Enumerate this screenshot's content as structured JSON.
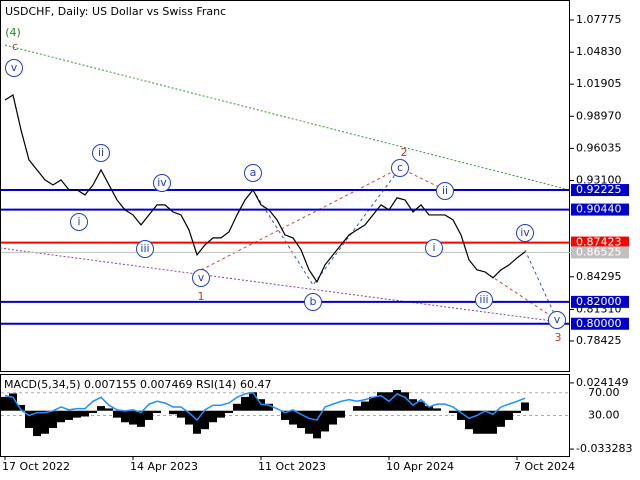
{
  "chart_data": [
    {
      "type": "line",
      "title": "USDCHF, Daily:  US Dollar vs Swiss Franc",
      "color": "#000000",
      "values": [
        1.0046,
        1.0092,
        0.9772,
        0.9498,
        0.9407,
        0.9315,
        0.9269,
        0.9315,
        0.9224,
        0.9224,
        0.9178,
        0.9269,
        0.9407,
        0.9269,
        0.9132,
        0.9041,
        0.8995,
        0.8904,
        0.8995,
        0.9087,
        0.9087,
        0.9022,
        0.8995,
        0.8858,
        0.863,
        0.8721,
        0.8785,
        0.8785,
        0.884,
        0.8995,
        0.9132,
        0.9224,
        0.9087,
        0.9041,
        0.895,
        0.8812,
        0.8785,
        0.8676,
        0.8493,
        0.8383,
        0.8538,
        0.863,
        0.8721,
        0.8812,
        0.8858,
        0.8904,
        0.8995,
        0.9087,
        0.9041,
        0.9151,
        0.9132,
        0.9022,
        0.9087,
        0.8995,
        0.8995,
        0.8995,
        0.895,
        0.8812,
        0.8584,
        0.8493,
        0.8474,
        0.842,
        0.8493,
        0.8538,
        0.8602,
        0.8657
      ],
      "ylim": [
        0.7568,
        1.0951
      ],
      "yticks": [
        1.07775,
        {
          "value": 1.0483,
          "label": "1.04830"
        },
        1.01905,
        {
          "value": 0.9897,
          "label": "0.98970"
        },
        0.96035,
        {
          "value": 0.931,
          "label": "0.93100"
        },
        0.84295,
        {
          "value": 0.8131,
          "label": "0.81310"
        },
        0.78425
      ],
      "levels": [
        {
          "value": 0.92225,
          "color": "#0000cc"
        },
        {
          "value": 0.9044,
          "label": "0.90440",
          "color": "#0000cc"
        },
        {
          "value": 0.87423,
          "color": "#ff0000"
        },
        {
          "value": 0.86525,
          "color": "#c0c0c0"
        },
        {
          "value": 0.82,
          "label": "0.82000",
          "color": "#0000cc"
        },
        {
          "value": 0.8,
          "label": "0.80000",
          "color": "#0000cc"
        }
      ],
      "annotations": [
        {
          "text": "(4)",
          "color": "#228b22"
        },
        {
          "text": "c",
          "color": "#c0392b"
        },
        {
          "text": "v",
          "color": "#2040c0",
          "circled": true
        },
        {
          "text": "ii",
          "color": "#2040c0",
          "circled": true
        },
        {
          "text": "i",
          "color": "#2040c0",
          "circled": true
        },
        {
          "text": "iv",
          "color": "#2040c0",
          "circled": true
        },
        {
          "text": "iii",
          "color": "#2040c0",
          "circled": true
        },
        {
          "text": "v",
          "color": "#2040c0",
          "circled": true
        },
        {
          "text": "1",
          "color": "#c0392b"
        },
        {
          "text": "a",
          "color": "#2040c0",
          "circled": true
        },
        {
          "text": "b",
          "color": "#2040c0",
          "circled": true
        },
        {
          "text": "c",
          "color": "#2040c0",
          "circled": true
        },
        {
          "text": "2",
          "color": "#c0392b"
        },
        {
          "text": "ii",
          "color": "#2040c0",
          "circled": true
        },
        {
          "text": "i",
          "color": "#2040c0",
          "circled": true
        },
        {
          "text": "iii",
          "color": "#2040c0",
          "circled": true
        },
        {
          "text": "iv",
          "color": "#2040c0",
          "circled": true
        },
        {
          "text": "v",
          "color": "#2040c0",
          "circled": true
        },
        {
          "text": "3",
          "color": "#c0392b"
        }
      ]
    },
    {
      "type": "macd",
      "title": "MACD(5,34,5) 0.007155 0.007469 RSI(14) 60.47",
      "categories": [
        "17 Oct 2022",
        null,
        null,
        null,
        null,
        null,
        null,
        null,
        null,
        null,
        null,
        null,
        null,
        null,
        null,
        null,
        "14 Apr 2023",
        null,
        null,
        null,
        null,
        null,
        null,
        null,
        null,
        null,
        null,
        null,
        null,
        null,
        null,
        null,
        "11 Oct 2023",
        null,
        null,
        null,
        null,
        null,
        null,
        null,
        null,
        null,
        null,
        null,
        null,
        null,
        null,
        null,
        "10 Apr 2024",
        null,
        null,
        null,
        null,
        null,
        null,
        null,
        null,
        null,
        null,
        null,
        null,
        null,
        null,
        null,
        "7 Oct 2024",
        null
      ],
      "series": [
        {
          "color": "#000000",
          "values": [
            0.012,
            0.015,
            0.005,
            -0.015,
            -0.022,
            -0.02,
            -0.015,
            -0.01,
            -0.008,
            -0.006,
            -0.005,
            -0.002,
            0.004,
            0.002,
            -0.006,
            -0.01,
            -0.012,
            -0.014,
            -0.008,
            -0.002,
            0.0,
            -0.003,
            -0.006,
            -0.012,
            -0.02,
            -0.016,
            -0.01,
            -0.006,
            -0.002,
            0.006,
            0.012,
            0.016,
            0.01,
            0.006,
            0.0,
            -0.008,
            -0.012,
            -0.015,
            -0.02,
            -0.024,
            -0.018,
            -0.012,
            -0.006,
            0.0,
            0.004,
            0.008,
            0.012,
            0.016,
            0.016,
            0.018,
            0.016,
            0.01,
            0.008,
            0.004,
            0.002,
            0.0,
            -0.002,
            -0.008,
            -0.016,
            -0.02,
            -0.02,
            -0.02,
            -0.014,
            -0.008,
            -0.002,
            0.007155
          ]
        },
        {
          "color": "#1e90ff",
          "axis": "y2",
          "values": [
            65,
            62,
            40,
            30,
            35,
            35,
            38,
            45,
            40,
            42,
            42,
            55,
            62,
            48,
            40,
            38,
            40,
            35,
            50,
            55,
            52,
            45,
            45,
            35,
            22,
            40,
            48,
            48,
            52,
            62,
            68,
            70,
            50,
            48,
            42,
            35,
            40,
            32,
            25,
            22,
            45,
            50,
            55,
            58,
            55,
            58,
            62,
            65,
            55,
            68,
            62,
            48,
            58,
            45,
            50,
            50,
            45,
            35,
            25,
            30,
            38,
            32,
            45,
            50,
            55,
            60.47
          ]
        }
      ],
      "ylim": [
        -0.0393,
        0.031
      ],
      "yticks": [
        0.024149,
        -0.033283
      ],
      "y2lim": [
        -41.25,
        101.25
      ],
      "y2ticks": [
        {
          "value": 70,
          "label": "70.00"
        },
        {
          "value": 30,
          "label": "30.00"
        }
      ]
    }
  ]
}
